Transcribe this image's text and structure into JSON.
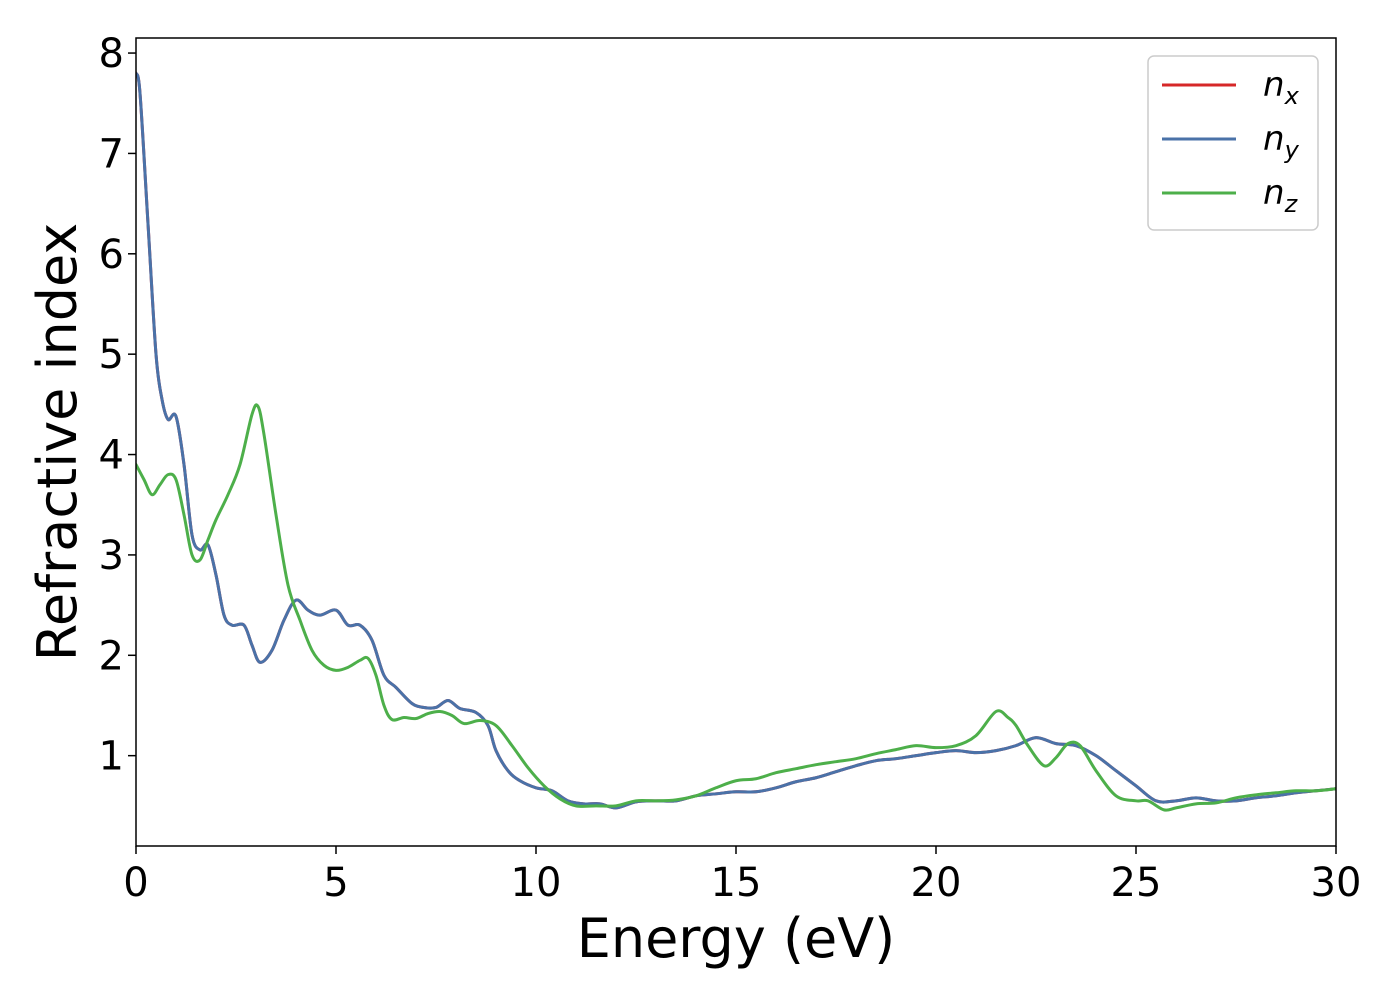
{
  "chart_data": {
    "type": "line",
    "xlabel": "Energy (eV)",
    "ylabel": "Refractive index",
    "xlim": [
      0,
      30
    ],
    "ylim": [
      0.1,
      8.15
    ],
    "xticks": [
      0,
      5,
      10,
      15,
      20,
      25,
      30
    ],
    "yticks": [
      1,
      2,
      3,
      4,
      5,
      6,
      7,
      8
    ],
    "grid": false,
    "legend_position": "top-right",
    "series": [
      {
        "name": "n_x",
        "label_base": "n",
        "label_sub": "x",
        "color": "#d62728",
        "x": [
          0,
          0.1,
          0.3,
          0.5,
          0.65,
          0.8,
          1.0,
          1.2,
          1.4,
          1.6,
          1.8,
          2.0,
          2.2,
          2.4,
          2.7,
          2.9,
          3.1,
          3.4,
          3.7,
          4.0,
          4.3,
          4.6,
          5.0,
          5.3,
          5.6,
          5.9,
          6.2,
          6.5,
          6.9,
          7.2,
          7.5,
          7.8,
          8.1,
          8.5,
          8.8,
          9.0,
          9.3,
          9.6,
          10.0,
          10.4,
          10.8,
          11.2,
          11.6,
          12.0,
          12.5,
          13.0,
          13.5,
          14.0,
          14.5,
          15.0,
          15.5,
          16.0,
          16.5,
          17.0,
          17.5,
          18.0,
          18.5,
          19.0,
          19.5,
          20.0,
          20.5,
          21.0,
          21.5,
          22.0,
          22.5,
          23.0,
          23.5,
          24.0,
          24.5,
          25.0,
          25.5,
          26.0,
          26.5,
          27.0,
          27.5,
          28.0,
          28.5,
          29.0,
          29.5,
          30.0
        ],
        "y": [
          7.8,
          7.6,
          6.3,
          5.0,
          4.55,
          4.35,
          4.38,
          3.9,
          3.2,
          3.05,
          3.1,
          2.8,
          2.4,
          2.3,
          2.3,
          2.1,
          1.93,
          2.05,
          2.35,
          2.55,
          2.45,
          2.4,
          2.45,
          2.3,
          2.3,
          2.15,
          1.8,
          1.68,
          1.52,
          1.48,
          1.48,
          1.55,
          1.47,
          1.43,
          1.3,
          1.05,
          0.85,
          0.75,
          0.68,
          0.65,
          0.55,
          0.52,
          0.52,
          0.48,
          0.54,
          0.55,
          0.55,
          0.6,
          0.62,
          0.64,
          0.64,
          0.68,
          0.74,
          0.78,
          0.84,
          0.9,
          0.95,
          0.97,
          1.0,
          1.03,
          1.05,
          1.03,
          1.05,
          1.1,
          1.18,
          1.12,
          1.1,
          1.0,
          0.85,
          0.7,
          0.55,
          0.55,
          0.58,
          0.55,
          0.55,
          0.58,
          0.6,
          0.63,
          0.65,
          0.67
        ]
      },
      {
        "name": "n_y",
        "label_base": "n",
        "label_sub": "y",
        "color": "#4a72a8",
        "x": [
          0,
          0.1,
          0.3,
          0.5,
          0.65,
          0.8,
          1.0,
          1.2,
          1.4,
          1.6,
          1.8,
          2.0,
          2.2,
          2.4,
          2.7,
          2.9,
          3.1,
          3.4,
          3.7,
          4.0,
          4.3,
          4.6,
          5.0,
          5.3,
          5.6,
          5.9,
          6.2,
          6.5,
          6.9,
          7.2,
          7.5,
          7.8,
          8.1,
          8.5,
          8.8,
          9.0,
          9.3,
          9.6,
          10.0,
          10.4,
          10.8,
          11.2,
          11.6,
          12.0,
          12.5,
          13.0,
          13.5,
          14.0,
          14.5,
          15.0,
          15.5,
          16.0,
          16.5,
          17.0,
          17.5,
          18.0,
          18.5,
          19.0,
          19.5,
          20.0,
          20.5,
          21.0,
          21.5,
          22.0,
          22.5,
          23.0,
          23.5,
          24.0,
          24.5,
          25.0,
          25.5,
          26.0,
          26.5,
          27.0,
          27.5,
          28.0,
          28.5,
          29.0,
          29.5,
          30.0
        ],
        "y": [
          7.8,
          7.6,
          6.3,
          5.0,
          4.55,
          4.35,
          4.38,
          3.9,
          3.2,
          3.05,
          3.1,
          2.8,
          2.4,
          2.3,
          2.3,
          2.1,
          1.93,
          2.05,
          2.35,
          2.55,
          2.45,
          2.4,
          2.45,
          2.3,
          2.3,
          2.15,
          1.8,
          1.68,
          1.52,
          1.48,
          1.48,
          1.55,
          1.47,
          1.43,
          1.3,
          1.05,
          0.85,
          0.75,
          0.68,
          0.65,
          0.55,
          0.52,
          0.52,
          0.48,
          0.54,
          0.55,
          0.55,
          0.6,
          0.62,
          0.64,
          0.64,
          0.68,
          0.74,
          0.78,
          0.84,
          0.9,
          0.95,
          0.97,
          1.0,
          1.03,
          1.05,
          1.03,
          1.05,
          1.1,
          1.18,
          1.12,
          1.1,
          1.0,
          0.85,
          0.7,
          0.55,
          0.55,
          0.58,
          0.55,
          0.55,
          0.58,
          0.6,
          0.63,
          0.65,
          0.67
        ]
      },
      {
        "name": "n_z",
        "label_base": "n",
        "label_sub": "z",
        "color": "#4daf4a",
        "x": [
          0,
          0.2,
          0.4,
          0.6,
          0.8,
          1.0,
          1.2,
          1.4,
          1.6,
          1.8,
          2.0,
          2.3,
          2.6,
          2.9,
          3.05,
          3.2,
          3.5,
          3.8,
          4.1,
          4.4,
          4.7,
          5.0,
          5.3,
          5.6,
          5.8,
          6.0,
          6.2,
          6.4,
          6.7,
          7.0,
          7.3,
          7.6,
          7.9,
          8.2,
          8.6,
          9.0,
          9.4,
          9.8,
          10.2,
          10.6,
          11.0,
          11.5,
          12.0,
          12.5,
          13.0,
          13.5,
          14.0,
          14.5,
          15.0,
          15.5,
          16.0,
          16.5,
          17.0,
          17.5,
          18.0,
          18.5,
          19.0,
          19.5,
          20.0,
          20.5,
          21.0,
          21.5,
          21.8,
          22.0,
          22.3,
          22.7,
          23.0,
          23.3,
          23.6,
          24.0,
          24.5,
          25.0,
          25.3,
          25.7,
          26.0,
          26.5,
          27.0,
          27.5,
          28.0,
          28.5,
          29.0,
          29.5,
          30.0
        ],
        "y": [
          3.9,
          3.75,
          3.6,
          3.7,
          3.8,
          3.75,
          3.4,
          3.0,
          2.95,
          3.15,
          3.35,
          3.6,
          3.9,
          4.4,
          4.48,
          4.2,
          3.4,
          2.7,
          2.35,
          2.05,
          1.9,
          1.85,
          1.88,
          1.95,
          1.97,
          1.8,
          1.5,
          1.36,
          1.38,
          1.37,
          1.42,
          1.44,
          1.4,
          1.32,
          1.35,
          1.3,
          1.1,
          0.88,
          0.7,
          0.57,
          0.5,
          0.5,
          0.5,
          0.55,
          0.55,
          0.56,
          0.6,
          0.68,
          0.75,
          0.77,
          0.83,
          0.87,
          0.91,
          0.94,
          0.97,
          1.02,
          1.06,
          1.1,
          1.08,
          1.1,
          1.2,
          1.44,
          1.38,
          1.3,
          1.1,
          0.9,
          0.98,
          1.12,
          1.1,
          0.85,
          0.6,
          0.55,
          0.55,
          0.46,
          0.48,
          0.52,
          0.53,
          0.58,
          0.61,
          0.63,
          0.65,
          0.65,
          0.67
        ]
      }
    ]
  }
}
